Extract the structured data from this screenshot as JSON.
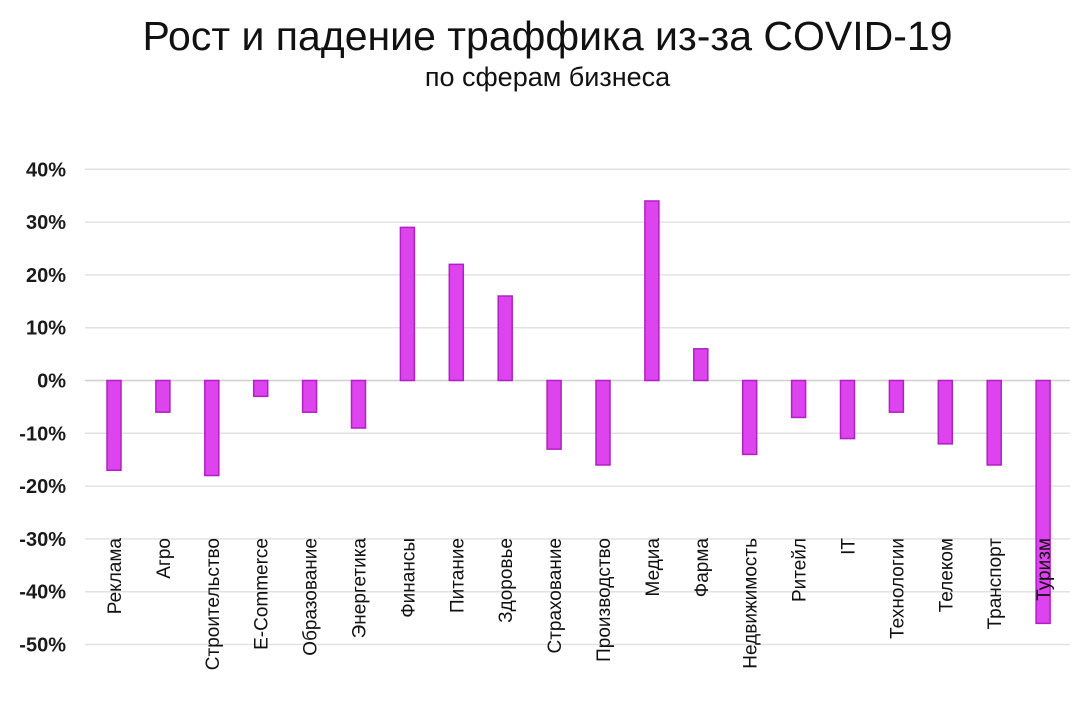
{
  "title": "Рост и падение траффика из-за COVID-19",
  "subtitle": "по сферам бизнеса",
  "colors": {
    "bar_fill": "#dd44ee",
    "bar_stroke": "#b020c4",
    "grid": "#e2e2e2",
    "zero_line": "#d0d0d0"
  },
  "chart_data": {
    "type": "bar",
    "title": "Рост и падение траффика из-за COVID-19",
    "subtitle": "по сферам бизнеса",
    "xlabel": "",
    "ylabel": "",
    "ylim": [
      -50,
      40
    ],
    "yticks": [
      40,
      30,
      20,
      10,
      0,
      -10,
      -20,
      -30,
      -40,
      -50
    ],
    "ytick_labels": [
      "40%",
      "30%",
      "20%",
      "10%",
      "0%",
      "-10%",
      "-20%",
      "-30%",
      "-40%",
      "-50%"
    ],
    "grid": true,
    "legend": "none",
    "categories": [
      "Реклама",
      "Агро",
      "Строительство",
      "E-Commerce",
      "Образование",
      "Энергетика",
      "Финансы",
      "Питание",
      "Здоровье",
      "Страхование",
      "Производство",
      "Медиа",
      "Фарма",
      "Недвижимость",
      "Ритейл",
      "IT",
      "Технологии",
      "Телеком",
      "Транспорт",
      "Туризм"
    ],
    "values": [
      -17,
      -6,
      -18,
      -3,
      -6,
      -9,
      29,
      22,
      16,
      -13,
      -16,
      34,
      6,
      -14,
      -7,
      -11,
      -6,
      -12,
      -16,
      -46
    ]
  }
}
